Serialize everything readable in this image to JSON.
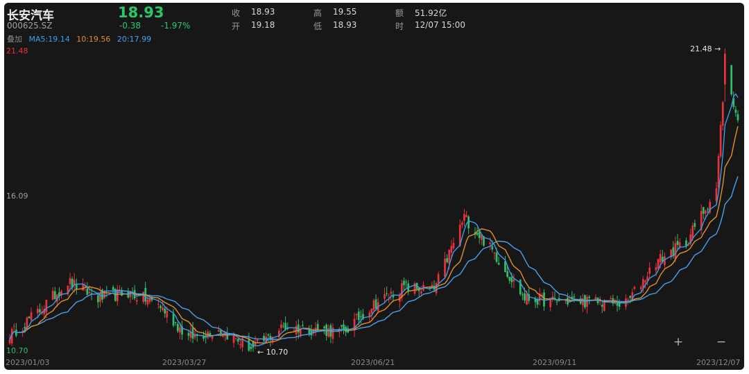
{
  "header": {
    "name": "长安汽车",
    "code": "000625.SZ",
    "price": "18.93",
    "change": "-0.38",
    "change_pct": "-1.97%",
    "stats": [
      {
        "label": "收",
        "value": "18.93"
      },
      {
        "label": "高",
        "value": "19.55"
      },
      {
        "label": "额",
        "value": "51.92亿"
      },
      {
        "label": "开",
        "value": "19.18"
      },
      {
        "label": "低",
        "value": "18.93"
      },
      {
        "label": "时",
        "value": "12/07 15:00"
      }
    ]
  },
  "ma_legend": {
    "title": "叠加",
    "ma5": "MA5:19.14",
    "ma10": "10:19.56",
    "ma20": "20:17.99"
  },
  "colors": {
    "up": "#e8323c",
    "down": "#2fbf6a",
    "ma5": "#3a9ee6",
    "ma10": "#e0912d",
    "ma20": "#4aa0f0"
  },
  "controls": {
    "zoom_in": "+",
    "zoom_out": "−"
  },
  "chart_data": {
    "type": "candlestick",
    "x_range": [
      "2023/01/03",
      "2023/12/07"
    ],
    "xticks": [
      "2023/01/03",
      "2023/03/27",
      "2023/06/21",
      "2023/09/11",
      "2023/12/07"
    ],
    "y_axis_labels": {
      "top": "21.48",
      "mid": "16.09",
      "bottom": "10.70"
    },
    "ylim": [
      10.7,
      21.48
    ],
    "annotations": [
      {
        "text": "21.48",
        "type": "max",
        "value": 21.48,
        "date": "2023/12/01"
      },
      {
        "text": "10.70",
        "type": "min",
        "value": 10.7,
        "date": "2023/04/26"
      }
    ],
    "close_approx": [
      {
        "date": "2023/01/03",
        "close": 11.3
      },
      {
        "date": "2023/01/16",
        "close": 12.1
      },
      {
        "date": "2023/01/30",
        "close": 13.2
      },
      {
        "date": "2023/02/13",
        "close": 12.6
      },
      {
        "date": "2023/02/27",
        "close": 12.8
      },
      {
        "date": "2023/03/13",
        "close": 12.4
      },
      {
        "date": "2023/03/27",
        "close": 11.2
      },
      {
        "date": "2023/04/10",
        "close": 11.5
      },
      {
        "date": "2023/04/26",
        "close": 10.8
      },
      {
        "date": "2023/05/10",
        "close": 11.6
      },
      {
        "date": "2023/05/24",
        "close": 11.5
      },
      {
        "date": "2023/06/07",
        "close": 11.4
      },
      {
        "date": "2023/06/21",
        "close": 12.4
      },
      {
        "date": "2023/07/05",
        "close": 13.0
      },
      {
        "date": "2023/07/19",
        "close": 12.9
      },
      {
        "date": "2023/08/02",
        "close": 15.5
      },
      {
        "date": "2023/08/16",
        "close": 14.2
      },
      {
        "date": "2023/08/30",
        "close": 12.6
      },
      {
        "date": "2023/09/11",
        "close": 12.5
      },
      {
        "date": "2023/09/25",
        "close": 12.5
      },
      {
        "date": "2023/10/16",
        "close": 12.4
      },
      {
        "date": "2023/10/30",
        "close": 13.9
      },
      {
        "date": "2023/11/13",
        "close": 14.6
      },
      {
        "date": "2023/11/27",
        "close": 16.5
      },
      {
        "date": "2023/12/01",
        "close": 20.8
      },
      {
        "date": "2023/12/07",
        "close": 18.93
      }
    ]
  }
}
